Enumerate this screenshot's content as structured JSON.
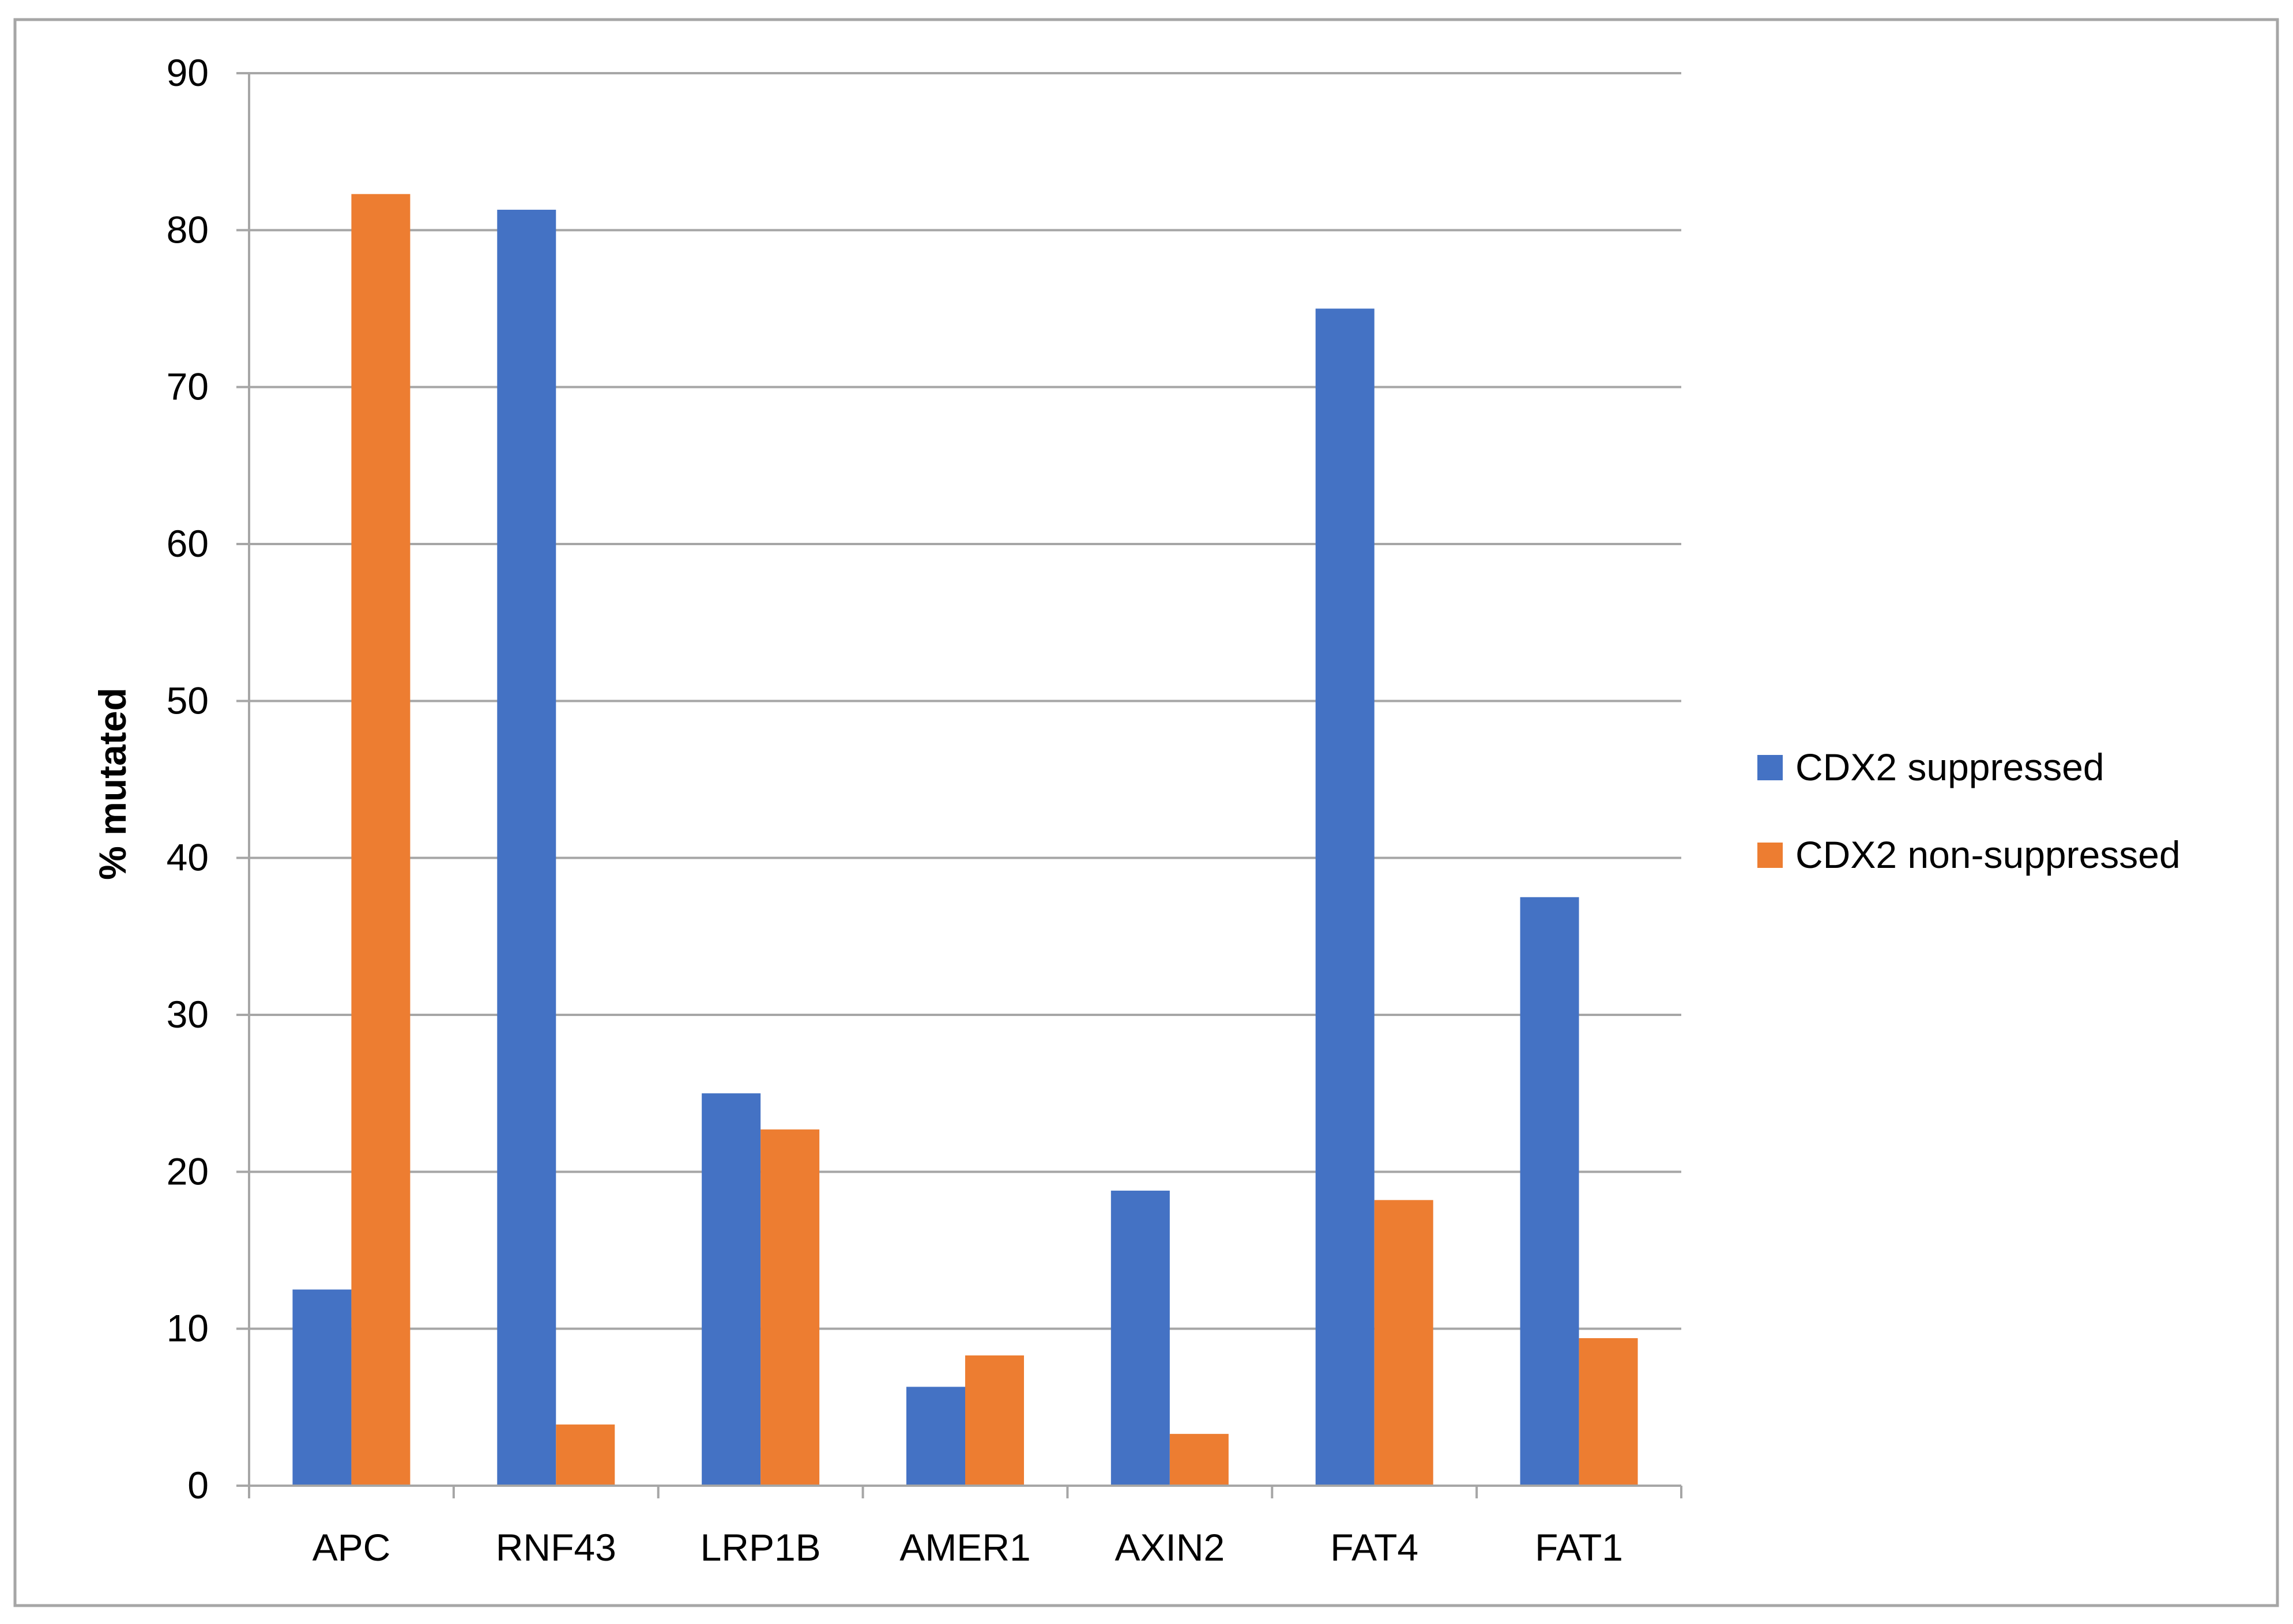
{
  "chart_data": {
    "type": "bar",
    "title": "",
    "xlabel": "",
    "ylabel": "% mutated",
    "ylim": [
      0,
      90
    ],
    "yticks": [
      0,
      10,
      20,
      30,
      40,
      50,
      60,
      70,
      80,
      90
    ],
    "grid": true,
    "legend_position": "right",
    "categories": [
      "APC",
      "RNF43",
      "LRP1B",
      "AMER1",
      "AXIN2",
      "FAT4",
      "FAT1"
    ],
    "series": [
      {
        "name": "CDX2 suppressed",
        "color": "#4472C4",
        "values": [
          12.5,
          81.3,
          25.0,
          6.3,
          18.8,
          75.0,
          37.5
        ]
      },
      {
        "name": "CDX2 non-suppressed",
        "color": "#ED7D31",
        "values": [
          82.3,
          3.9,
          22.7,
          8.3,
          3.3,
          18.2,
          9.4
        ]
      }
    ]
  }
}
